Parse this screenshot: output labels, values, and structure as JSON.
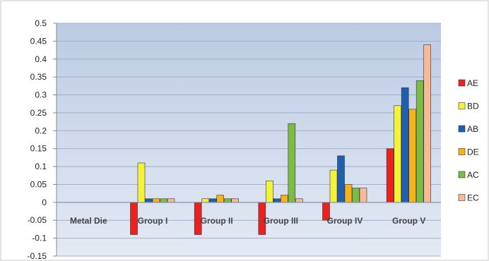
{
  "chart_data": {
    "type": "bar",
    "title": "",
    "xlabel": "",
    "ylabel": "",
    "ylim": [
      -0.15,
      0.5
    ],
    "ytick_step": 0.05,
    "yticks": [
      "0.5",
      "0.45",
      "0.4",
      "0.35",
      "0.3",
      "0.25",
      "0.2",
      "0.15",
      "0.1",
      "0.05",
      "0",
      "-0.05",
      "-0.1",
      "-0.15"
    ],
    "grid": true,
    "legend_position": "right",
    "categories": [
      "Metal Die",
      "Group I",
      "Group II",
      "Group III",
      "Group IV",
      "Group V"
    ],
    "series": [
      {
        "name": "AE",
        "color": "#e8231f",
        "values": [
          0,
          -0.09,
          -0.09,
          -0.09,
          -0.05,
          0.15
        ]
      },
      {
        "name": "BD",
        "color": "#f5f23a",
        "values": [
          0,
          0.11,
          0.01,
          0.06,
          0.09,
          0.27
        ]
      },
      {
        "name": "AB",
        "color": "#1f5fb0",
        "values": [
          0,
          0.01,
          0.01,
          0.01,
          0.13,
          0.32
        ]
      },
      {
        "name": "DE",
        "color": "#f7b21c",
        "values": [
          0,
          0.01,
          0.02,
          0.02,
          0.05,
          0.26
        ]
      },
      {
        "name": "AC",
        "color": "#7cbc45",
        "values": [
          0,
          0.01,
          0.01,
          0.22,
          0.04,
          0.34
        ]
      },
      {
        "name": "EC",
        "color": "#f6b999",
        "values": [
          0,
          0.01,
          0.01,
          0.01,
          0.04,
          0.44
        ]
      }
    ]
  }
}
